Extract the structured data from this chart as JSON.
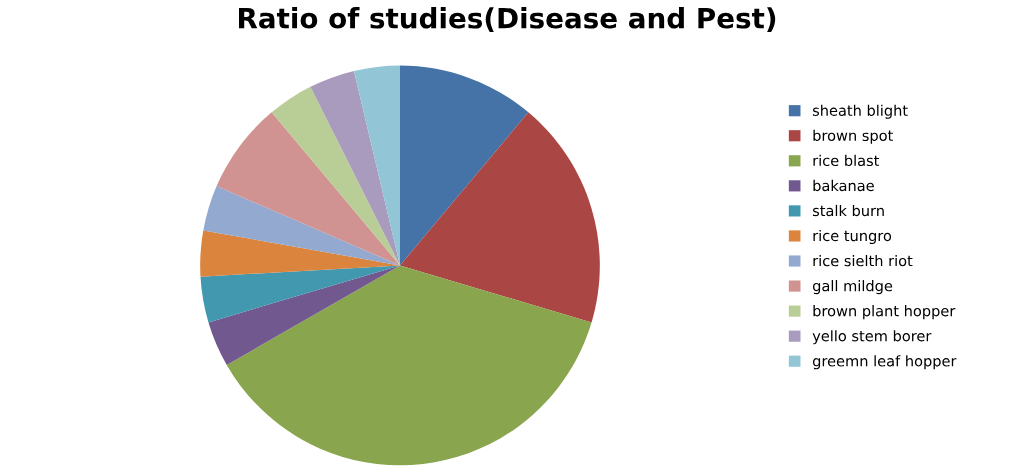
{
  "chart_data": {
    "type": "pie",
    "title": "Ratio of studies(Disease and Pest)",
    "categories": [
      "sheath blight",
      "brown spot",
      "rice blast",
      "bakanae",
      "stalk burn",
      "rice tungro",
      "rice sielth riot",
      "gall mildge",
      "brown plant hopper",
      "yello stem borer",
      "greemn leaf hopper"
    ],
    "values": [
      11.1,
      18.5,
      37.1,
      3.7,
      3.7,
      3.7,
      3.7,
      7.4,
      3.7,
      3.7,
      3.7
    ],
    "colors": [
      "#4572a7",
      "#aa4643",
      "#89a54e",
      "#71588f",
      "#4198af",
      "#db843d",
      "#93a9cf",
      "#d19392",
      "#b9cd96",
      "#a99bbd",
      "#92c5d6"
    ],
    "legend": "right"
  }
}
